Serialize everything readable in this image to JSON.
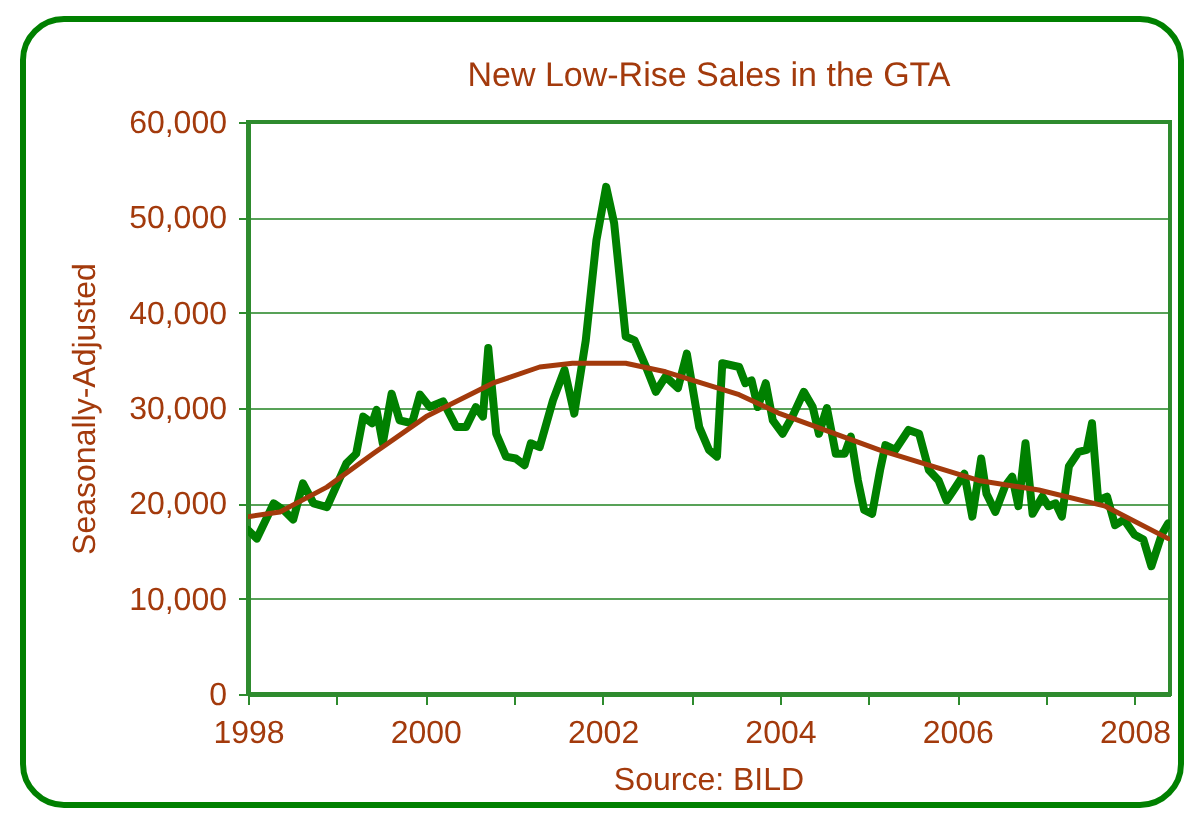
{
  "chart_data": {
    "type": "line",
    "title": "New Low-Rise Sales in the GTA",
    "ylabel": "Seasonally-Adjusted",
    "annotations": [
      "Source:  BILD"
    ],
    "xlim": [
      1998,
      2008.4
    ],
    "ylim": [
      0,
      60000
    ],
    "xticks": [
      {
        "value": 1998,
        "label": "1998"
      },
      {
        "value": 1999,
        "label": null
      },
      {
        "value": 2000,
        "label": "2000"
      },
      {
        "value": 2001,
        "label": null
      },
      {
        "value": 2002,
        "label": "2002"
      },
      {
        "value": 2003,
        "label": null
      },
      {
        "value": 2004,
        "label": "2004"
      },
      {
        "value": 2005,
        "label": null
      },
      {
        "value": 2006,
        "label": "2006"
      },
      {
        "value": 2007,
        "label": null
      },
      {
        "value": 2008,
        "label": "2008"
      }
    ],
    "yticks": [
      0,
      {
        "value": 10000,
        "label": "10,000"
      },
      {
        "value": 20000,
        "label": "20,000"
      },
      {
        "value": 30000,
        "label": "30,000"
      },
      {
        "value": 40000,
        "label": "40,000"
      },
      {
        "value": 50000,
        "label": "50,000"
      },
      {
        "value": 60000,
        "label": "60,000"
      }
    ],
    "grid": "y",
    "marker": "none",
    "line_style": "solid",
    "series": [
      {
        "type": "line",
        "color": "#008000",
        "x": [
          1998.0,
          1998.1,
          1998.29,
          1998.4,
          1998.51,
          1998.62,
          1998.74,
          1998.89,
          1999.11,
          1999.22,
          1999.3,
          1999.4,
          1999.45,
          1999.52,
          1999.62,
          1999.71,
          1999.85,
          1999.94,
          2000.05,
          2000.2,
          2000.35,
          2000.46,
          2000.57,
          2000.65,
          2000.71,
          2000.8,
          2000.91,
          2001.02,
          2001.12,
          2001.19,
          2001.29,
          2001.44,
          2001.57,
          2001.68,
          2001.81,
          2001.93,
          2002.04,
          2002.13,
          2002.26,
          2002.36,
          2002.49,
          2002.6,
          2002.71,
          2002.85,
          2002.95,
          2003.09,
          2003.2,
          2003.29,
          2003.35,
          2003.54,
          2003.61,
          2003.68,
          2003.75,
          2003.84,
          2003.92,
          2004.03,
          2004.14,
          2004.27,
          2004.37,
          2004.44,
          2004.53,
          2004.63,
          2004.73,
          2004.8,
          2004.88,
          2004.95,
          2005.04,
          2005.13,
          2005.19,
          2005.3,
          2005.45,
          2005.57,
          2005.68,
          2005.79,
          2005.88,
          2005.96,
          2006.08,
          2006.17,
          2006.27,
          2006.33,
          2006.43,
          2006.54,
          2006.62,
          2006.69,
          2006.77,
          2006.85,
          2006.96,
          2007.03,
          2007.11,
          2007.18,
          2007.26,
          2007.37,
          2007.46,
          2007.52,
          2007.59,
          2007.69,
          2007.78,
          2007.88,
          2008.0,
          2008.1,
          2008.19,
          2008.31,
          2008.38
        ],
        "values": [
          17200,
          16300,
          20000,
          19300,
          18300,
          22100,
          20000,
          19600,
          24200,
          25200,
          29100,
          28400,
          29800,
          26300,
          31500,
          28700,
          28400,
          31400,
          30100,
          30700,
          28000,
          28000,
          30100,
          29100,
          36300,
          27300,
          24900,
          24700,
          24000,
          26300,
          25900,
          30800,
          34000,
          29400,
          37100,
          47600,
          53200,
          49400,
          37500,
          37100,
          34300,
          31700,
          33300,
          32100,
          35700,
          28000,
          25600,
          24900,
          34700,
          34300,
          32600,
          32900,
          30100,
          32600,
          28700,
          27300,
          29100,
          31700,
          30100,
          27300,
          30000,
          25200,
          25200,
          27000,
          22400,
          19300,
          18900,
          23500,
          26100,
          25600,
          27700,
          27300,
          23500,
          22400,
          20300,
          21400,
          23100,
          18600,
          24700,
          21000,
          19100,
          21800,
          22800,
          19700,
          26300,
          18900,
          20700,
          19700,
          20000,
          18600,
          23900,
          25400,
          25600,
          28400,
          20300,
          20700,
          17700,
          18300,
          16700,
          16200,
          13400,
          16800,
          17900
        ]
      },
      {
        "type": "line",
        "color": "#a33a0c",
        "x": [
          1998.0,
          1998.36,
          1998.89,
          1999.41,
          2000.01,
          2000.76,
          2001.29,
          2001.66,
          2002.26,
          2002.71,
          2003.54,
          2004.0,
          2005.12,
          2006.24,
          2006.92,
          2007.67,
          2008.38
        ],
        "values": [
          18600,
          19100,
          21700,
          25200,
          29100,
          32600,
          34300,
          34700,
          34700,
          33800,
          31400,
          29400,
          25600,
          22400,
          21400,
          19700,
          16300
        ]
      }
    ]
  }
}
